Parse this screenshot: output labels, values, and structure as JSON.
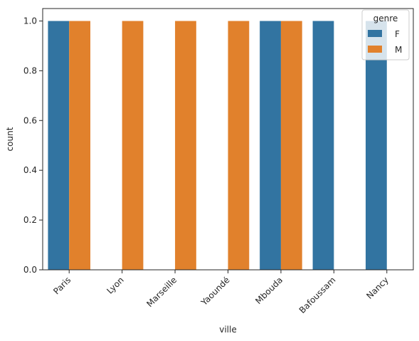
{
  "chart_data": {
    "type": "bar",
    "categories": [
      "Paris",
      "Lyon",
      "Marseille",
      "Yaoundé",
      "Mbouda",
      "Bafoussam",
      "Nancy"
    ],
    "series": [
      {
        "name": "F",
        "color": "#3274a1",
        "values": [
          1,
          0,
          0,
          0,
          1,
          1,
          1
        ]
      },
      {
        "name": "M",
        "color": "#e1812c",
        "values": [
          1,
          1,
          1,
          1,
          1,
          0,
          0
        ]
      }
    ],
    "xlabel": "ville",
    "ylabel": "count",
    "ylim": [
      0,
      1.05
    ],
    "yticks": [
      0.0,
      0.2,
      0.4,
      0.6,
      0.8,
      1.0
    ],
    "ytick_labels": [
      "0.0",
      "0.2",
      "0.4",
      "0.6",
      "0.8",
      "1.0"
    ],
    "legend": {
      "title": "genre",
      "placement": "top-right"
    },
    "grid": false
  }
}
